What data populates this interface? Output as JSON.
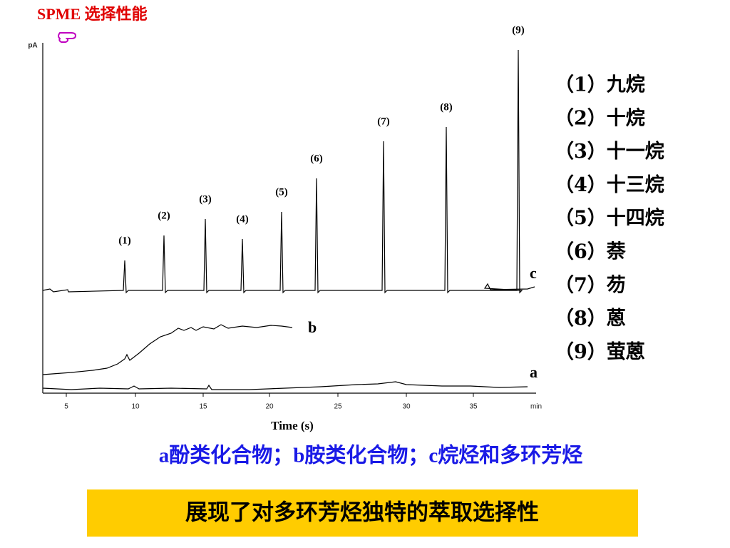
{
  "title": "SPME 选择性能",
  "chromatogram": {
    "y_axis_label": "pA",
    "x_axis_label": "Time (s)",
    "x_tick_labels": [
      "5",
      "10",
      "15",
      "20",
      "25",
      "30",
      "35",
      "min"
    ],
    "peak_labels": [
      "(1)",
      "(2)",
      "(3)",
      "(4)",
      "(5)",
      "(6)",
      "(7)",
      "(8)",
      "(9)"
    ],
    "trace_labels": [
      "c",
      "b",
      "a"
    ]
  },
  "legend": [
    "（1）九烷",
    "（2）十烷",
    "（3）十一烷",
    "（4）十三烷",
    "（5）十四烷",
    "（6）萘",
    "（7）芴",
    "（8）蒽",
    "（9）萤蒽"
  ],
  "caption": "a酚类化合物；b胺类化合物；c烷烃和多环芳烃",
  "banner": "展现了对多环芳烃独特的萃取选择性"
}
